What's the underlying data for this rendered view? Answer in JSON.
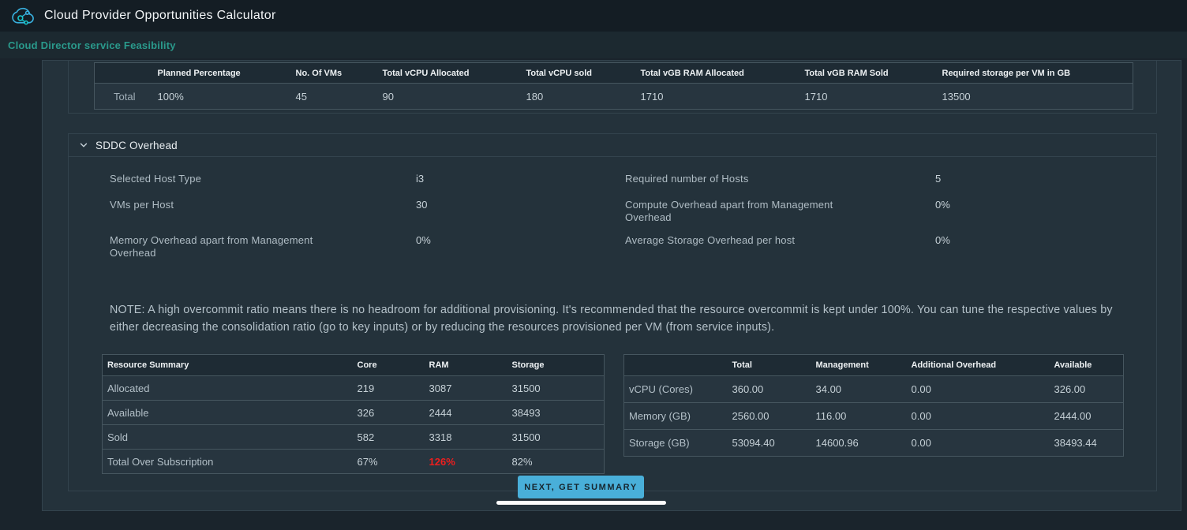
{
  "header": {
    "title": "Cloud Provider Opportunities Calculator"
  },
  "subnav": {
    "link": "Cloud Director service Feasibility"
  },
  "totals_table": {
    "columns": [
      "",
      "Planned Percentage",
      "No. Of VMs",
      "Total vCPU Allocated",
      "Total vCPU sold",
      "Total vGB RAM Allocated",
      "Total vGB RAM Sold",
      "Required storage per VM in GB"
    ],
    "rows": [
      {
        "label": "Total",
        "values": [
          "100%",
          "45",
          "90",
          "180",
          "1710",
          "1710",
          "13500"
        ]
      }
    ]
  },
  "sddc": {
    "title": "SDDC Overhead",
    "fields": [
      {
        "label": "Selected Host Type",
        "value": "i3"
      },
      {
        "label": "Required number of Hosts",
        "value": "5"
      },
      {
        "label": "VMs per Host",
        "value": "30"
      },
      {
        "label": "Compute Overhead apart from Management Overhead",
        "value": "0%"
      },
      {
        "label": "Memory Overhead apart from Management Overhead",
        "value": "0%"
      },
      {
        "label": "Average Storage Overhead per host",
        "value": "0%"
      }
    ],
    "note": "NOTE: A high overcommit ratio means there is no headroom for additional provisioning. It's recommended that the resource overcommit is kept under 100%. You can tune the respective values by either decreasing the consolidation ratio (go to key inputs) or by reducing the resources provisioned per VM (from service inputs).",
    "next_button_label": "NEXT, GET SUMMARY"
  },
  "resource_summary_table": {
    "columns": [
      "Resource Summary",
      "Core",
      "RAM",
      "Storage"
    ],
    "rows": [
      {
        "label": "Allocated",
        "values": [
          "219",
          "3087",
          "31500"
        ]
      },
      {
        "label": "Available",
        "values": [
          "326",
          "2444",
          "38493"
        ]
      },
      {
        "label": "Sold",
        "values": [
          "582",
          "3318",
          "31500"
        ]
      },
      {
        "label": "Total Over Subscription",
        "values": [
          "67%",
          "126%",
          "82%"
        ],
        "danger_cols": [
          1
        ]
      }
    ]
  },
  "capacity_table": {
    "columns": [
      "",
      "Total",
      "Management",
      "Additional Overhead",
      "Available"
    ],
    "rows": [
      {
        "label": "vCPU (Cores)",
        "values": [
          "360.00",
          "34.00",
          "0.00",
          "326.00"
        ]
      },
      {
        "label": "Memory (GB)",
        "values": [
          "2560.00",
          "116.00",
          "0.00",
          "2444.00"
        ]
      },
      {
        "label": "Storage (GB)",
        "values": [
          "53094.40",
          "14600.96",
          "0.00",
          "38493.44"
        ]
      }
    ]
  },
  "colors": {
    "accent_teal": "#2a9a8c",
    "primary_button": "#49afd9",
    "danger_red": "#ed1e1e"
  }
}
